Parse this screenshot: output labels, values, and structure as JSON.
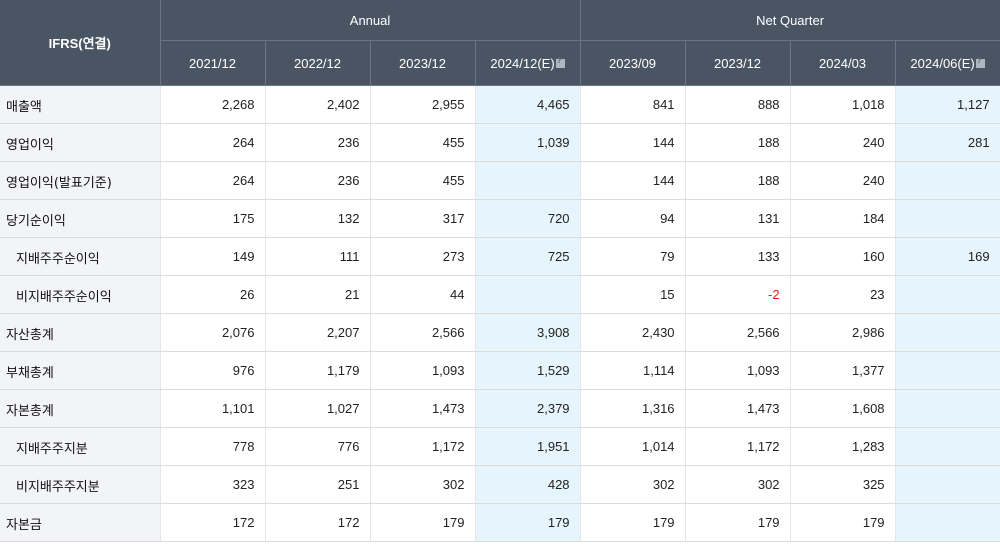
{
  "header": {
    "corner": "IFRS(연결)",
    "groups": {
      "annual": "Annual",
      "quarter": "Net Quarter"
    },
    "columns": [
      "2021/12",
      "2022/12",
      "2023/12",
      "2024/12(E)",
      "2023/09",
      "2023/12",
      "2024/03",
      "2024/06(E)"
    ]
  },
  "colors": {
    "header_bg": "#4a5563",
    "label_bg": "#f3f4f8",
    "estimate_bg": "#e6f4fb",
    "negative": "#e8201b"
  },
  "rows": [
    {
      "label": "매출액",
      "values": [
        "2,268",
        "2,402",
        "2,955",
        "4,465",
        "841",
        "888",
        "1,018",
        "1,127"
      ]
    },
    {
      "label": "영업이익",
      "values": [
        "264",
        "236",
        "455",
        "1,039",
        "144",
        "188",
        "240",
        "281"
      ]
    },
    {
      "label": "영업이익(발표기준)",
      "values": [
        "264",
        "236",
        "455",
        "",
        "144",
        "188",
        "240",
        ""
      ]
    },
    {
      "label": "당기순이익",
      "values": [
        "175",
        "132",
        "317",
        "720",
        "94",
        "131",
        "184",
        ""
      ]
    },
    {
      "label": "지배주주순이익",
      "values": [
        "149",
        "111",
        "273",
        "725",
        "79",
        "133",
        "160",
        "169"
      ]
    },
    {
      "label": "비지배주주순이익",
      "values": [
        "26",
        "21",
        "44",
        "",
        "15",
        "-2",
        "23",
        ""
      ]
    },
    {
      "label": "자산총계",
      "values": [
        "2,076",
        "2,207",
        "2,566",
        "3,908",
        "2,430",
        "2,566",
        "2,986",
        ""
      ]
    },
    {
      "label": "부채총계",
      "values": [
        "976",
        "1,179",
        "1,093",
        "1,529",
        "1,114",
        "1,093",
        "1,377",
        ""
      ]
    },
    {
      "label": "자본총계",
      "values": [
        "1,101",
        "1,027",
        "1,473",
        "2,379",
        "1,316",
        "1,473",
        "1,608",
        ""
      ]
    },
    {
      "label": "지배주주지분",
      "values": [
        "778",
        "776",
        "1,172",
        "1,951",
        "1,014",
        "1,172",
        "1,283",
        ""
      ]
    },
    {
      "label": "비지배주주지분",
      "values": [
        "323",
        "251",
        "302",
        "428",
        "302",
        "302",
        "325",
        ""
      ]
    },
    {
      "label": "자본금",
      "values": [
        "172",
        "172",
        "179",
        "179",
        "179",
        "179",
        "179",
        ""
      ]
    }
  ]
}
